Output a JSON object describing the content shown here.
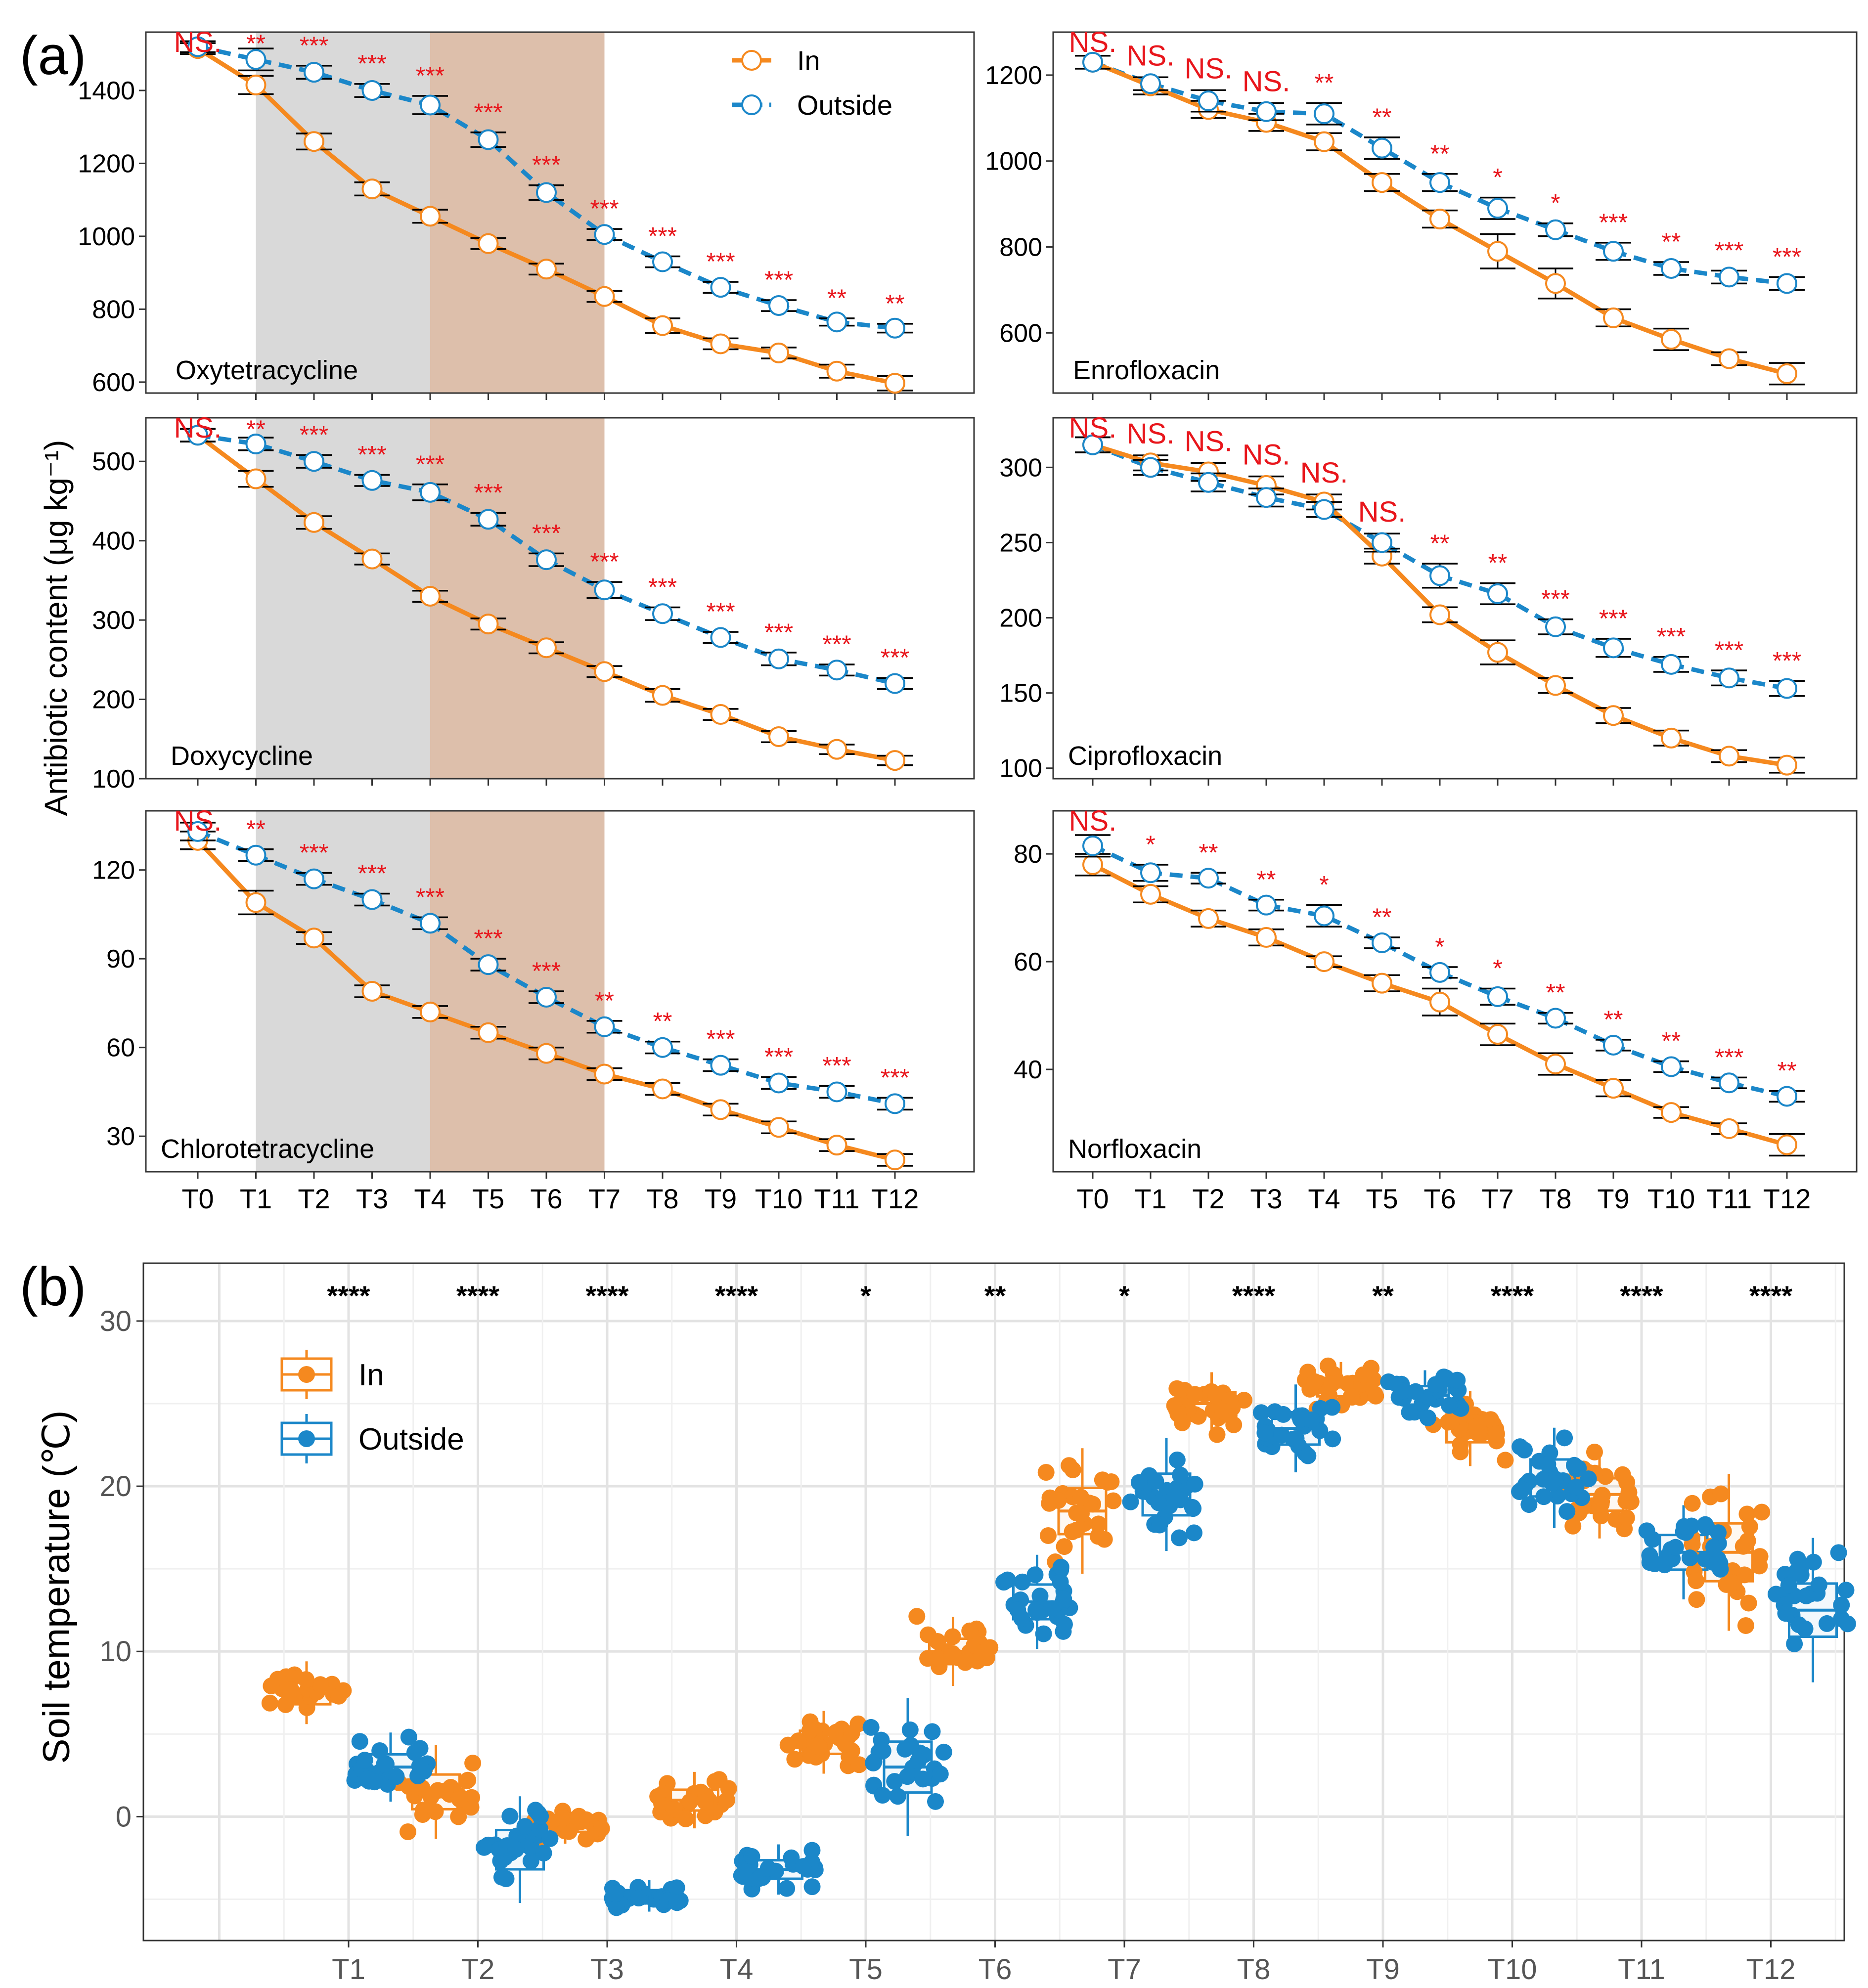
{
  "panel_a_label": "(a)",
  "panel_b_label": "(b)",
  "panel_a_ylabel": "Antibiotic content (μg kg⁻¹)",
  "panel_b_ylabel": "Soil temperature (℃)",
  "legend_a": {
    "in_label": "In",
    "outside_label": "Outside"
  },
  "legend_b": {
    "in_label": "In",
    "outside_label": "Outside"
  },
  "colors": {
    "in": "#F5891F",
    "outside": "#1B87C9",
    "sig": "#E8161C",
    "gray_band": "#D9D9D9",
    "brown_band": "#DDBFAB"
  },
  "chart_data": [
    {
      "type": "line",
      "title": "Oxytetracycline",
      "categories": [
        "T0",
        "T1",
        "T2",
        "T3",
        "T4",
        "T5",
        "T6",
        "T7",
        "T8",
        "T9",
        "T10",
        "T11",
        "T12"
      ],
      "ylim": [
        570,
        1560
      ],
      "yticks": [
        600,
        800,
        1000,
        1200,
        1400
      ],
      "series": [
        {
          "name": "In",
          "values": [
            1515,
            1415,
            1260,
            1130,
            1055,
            980,
            910,
            835,
            755,
            705,
            680,
            630,
            597
          ],
          "errors": [
            15,
            25,
            22,
            18,
            18,
            15,
            15,
            15,
            20,
            15,
            15,
            18,
            20
          ]
        },
        {
          "name": "Outside",
          "values": [
            1520,
            1485,
            1450,
            1400,
            1360,
            1265,
            1120,
            1005,
            930,
            860,
            810,
            765,
            748
          ],
          "errors": [
            15,
            30,
            18,
            18,
            25,
            20,
            20,
            15,
            15,
            15,
            15,
            10,
            12
          ]
        }
      ],
      "significance": [
        "NS.",
        "**",
        "***",
        "***",
        "***",
        "***",
        "***",
        "***",
        "***",
        "***",
        "***",
        "**",
        "**"
      ],
      "shading": {
        "gray": [
          "T1",
          "T4"
        ],
        "brown": [
          "T4",
          "T7"
        ]
      }
    },
    {
      "type": "line",
      "title": "Enrofloxacin",
      "categories": [
        "T0",
        "T1",
        "T2",
        "T3",
        "T4",
        "T5",
        "T6",
        "T7",
        "T8",
        "T9",
        "T10",
        "T11",
        "T12"
      ],
      "ylim": [
        460,
        1300
      ],
      "yticks": [
        600,
        800,
        1000,
        1200
      ],
      "series": [
        {
          "name": "In",
          "values": [
            1230,
            1175,
            1120,
            1090,
            1045,
            950,
            865,
            790,
            715,
            635,
            585,
            540,
            505
          ],
          "errors": [
            15,
            20,
            20,
            20,
            20,
            20,
            20,
            40,
            35,
            20,
            25,
            15,
            25
          ]
        },
        {
          "name": "Outside",
          "values": [
            1230,
            1180,
            1140,
            1115,
            1110,
            1030,
            950,
            890,
            840,
            790,
            750,
            730,
            715
          ],
          "errors": [
            15,
            15,
            25,
            20,
            25,
            25,
            20,
            25,
            15,
            20,
            15,
            15,
            15
          ]
        }
      ],
      "significance": [
        "NS.",
        "NS.",
        "NS.",
        "NS.",
        "**",
        "**",
        "**",
        "*",
        "*",
        "***",
        "**",
        "***",
        "***"
      ]
    },
    {
      "type": "line",
      "title": "Doxycycline",
      "categories": [
        "T0",
        "T1",
        "T2",
        "T3",
        "T4",
        "T5",
        "T6",
        "T7",
        "T8",
        "T9",
        "T10",
        "T11",
        "T12"
      ],
      "ylim": [
        100,
        555
      ],
      "yticks": [
        100,
        200,
        300,
        400,
        500
      ],
      "series": [
        {
          "name": "In",
          "values": [
            533,
            478,
            423,
            377,
            330,
            295,
            265,
            235,
            205,
            181,
            153,
            137,
            123
          ],
          "errors": [
            8,
            10,
            8,
            7,
            7,
            7,
            7,
            7,
            8,
            7,
            7,
            6,
            6
          ]
        },
        {
          "name": "Outside",
          "values": [
            533,
            522,
            500,
            476,
            461,
            427,
            376,
            338,
            308,
            278,
            251,
            237,
            220
          ],
          "errors": [
            8,
            8,
            8,
            7,
            10,
            8,
            8,
            10,
            8,
            7,
            8,
            7,
            7
          ]
        }
      ],
      "significance": [
        "NS.",
        "**",
        "***",
        "***",
        "***",
        "***",
        "***",
        "***",
        "***",
        "***",
        "***",
        "***",
        "***"
      ],
      "shading": {
        "gray": [
          "T1",
          "T4"
        ],
        "brown": [
          "T4",
          "T7"
        ]
      }
    },
    {
      "type": "line",
      "title": "Ciprofloxacin",
      "categories": [
        "T0",
        "T1",
        "T2",
        "T3",
        "T4",
        "T5",
        "T6",
        "T7",
        "T8",
        "T9",
        "T10",
        "T11",
        "T12"
      ],
      "ylim": [
        93,
        333
      ],
      "yticks": [
        100,
        150,
        200,
        250,
        300
      ],
      "series": [
        {
          "name": "In",
          "values": [
            315,
            303,
            297,
            288,
            277,
            241,
            202,
            177,
            155,
            135,
            120,
            108,
            102
          ],
          "errors": [
            5,
            5,
            6,
            6,
            5,
            5,
            5,
            8,
            5,
            5,
            5,
            4,
            5
          ]
        },
        {
          "name": "Outside",
          "values": [
            315,
            300,
            290,
            280,
            272,
            250,
            228,
            216,
            194,
            180,
            169,
            160,
            153
          ],
          "errors": [
            5,
            5,
            6,
            6,
            5,
            6,
            8,
            7,
            5,
            6,
            5,
            5,
            5
          ]
        }
      ],
      "significance": [
        "NS.",
        "NS.",
        "NS.",
        "NS.",
        "NS.",
        "NS.",
        "**",
        "**",
        "***",
        "***",
        "***",
        "***",
        "***"
      ]
    },
    {
      "type": "line",
      "title": "Chlorotetracycline",
      "categories": [
        "T0",
        "T1",
        "T2",
        "T3",
        "T4",
        "T5",
        "T6",
        "T7",
        "T8",
        "T9",
        "T10",
        "T11",
        "T12"
      ],
      "ylim": [
        18,
        140
      ],
      "yticks": [
        30,
        60,
        90,
        120
      ],
      "series": [
        {
          "name": "In",
          "values": [
            130,
            109,
            97,
            79,
            72,
            65,
            58,
            51,
            46,
            39,
            33,
            27,
            22
          ],
          "errors": [
            3,
            4,
            2,
            2,
            2,
            2,
            2,
            2,
            2,
            2,
            2,
            2,
            2
          ]
        },
        {
          "name": "Outside",
          "values": [
            133,
            125,
            117,
            110,
            102,
            88,
            77,
            67,
            60,
            54,
            48,
            45,
            41
          ],
          "errors": [
            3,
            2,
            2,
            2,
            2,
            2,
            2,
            2,
            2,
            2,
            2,
            2,
            2
          ]
        }
      ],
      "significance": [
        "NS.",
        "**",
        "***",
        "***",
        "***",
        "***",
        "***",
        "**",
        "**",
        "***",
        "***",
        "***",
        "***"
      ],
      "shading": {
        "gray": [
          "T1",
          "T4"
        ],
        "brown": [
          "T4",
          "T7"
        ]
      }
    },
    {
      "type": "line",
      "title": "Norfloxacin",
      "categories": [
        "T0",
        "T1",
        "T2",
        "T3",
        "T4",
        "T5",
        "T6",
        "T7",
        "T8",
        "T9",
        "T10",
        "T11",
        "T12"
      ],
      "ylim": [
        21,
        88
      ],
      "yticks": [
        40,
        60,
        80
      ],
      "series": [
        {
          "name": "In",
          "values": [
            78,
            72.5,
            68,
            64.5,
            60,
            56,
            52.5,
            46.5,
            41,
            36.5,
            32,
            29,
            26
          ],
          "errors": [
            2,
            1.5,
            1.5,
            1.5,
            1,
            1.5,
            2.5,
            2,
            2,
            1.5,
            1,
            1,
            2
          ]
        },
        {
          "name": "Outside",
          "values": [
            81.5,
            76.5,
            75.5,
            70.5,
            68.5,
            63.5,
            58,
            53.5,
            49.5,
            44.5,
            40.5,
            37.5,
            35
          ],
          "errors": [
            2,
            1.5,
            1,
            1,
            2,
            1,
            1,
            1.5,
            1,
            1,
            1,
            1,
            1
          ]
        }
      ],
      "significance": [
        "NS.",
        "*",
        "**",
        "**",
        "*",
        "**",
        "*",
        "*",
        "**",
        "**",
        "**",
        "***",
        "**"
      ]
    },
    {
      "type": "scatter",
      "title": "",
      "categories": [
        "T1",
        "T2",
        "T3",
        "T4",
        "T5",
        "T6",
        "T7",
        "T8",
        "T9",
        "T10",
        "T11",
        "T12"
      ],
      "ylim": [
        -7.5,
        33.5
      ],
      "yticks": [
        0,
        10,
        20,
        30
      ],
      "series": [
        {
          "name": "In",
          "median": [
            7.5,
            1.5,
            -0.5,
            1,
            4.5,
            10,
            18.5,
            25,
            26,
            23.5,
            19.5,
            16
          ],
          "spread": [
            1,
            1.5,
            0.6,
            0.9,
            1,
            1.1,
            2,
            1,
            0.8,
            1.2,
            1.4,
            2.5
          ]
        },
        {
          "name": "Outside",
          "median": [
            3,
            -2,
            -4.8,
            -3.2,
            3,
            13,
            19.5,
            23.5,
            25.5,
            20.5,
            16,
            12.5
          ],
          "spread": [
            1.1,
            1.7,
            0.5,
            0.8,
            2.2,
            1.5,
            1.8,
            1.4,
            0.8,
            1.6,
            1.5,
            2.3
          ]
        }
      ],
      "significance": [
        "****",
        "****",
        "****",
        "****",
        "*",
        "**",
        "*",
        "****",
        "**",
        "****",
        "****",
        "****"
      ]
    }
  ]
}
